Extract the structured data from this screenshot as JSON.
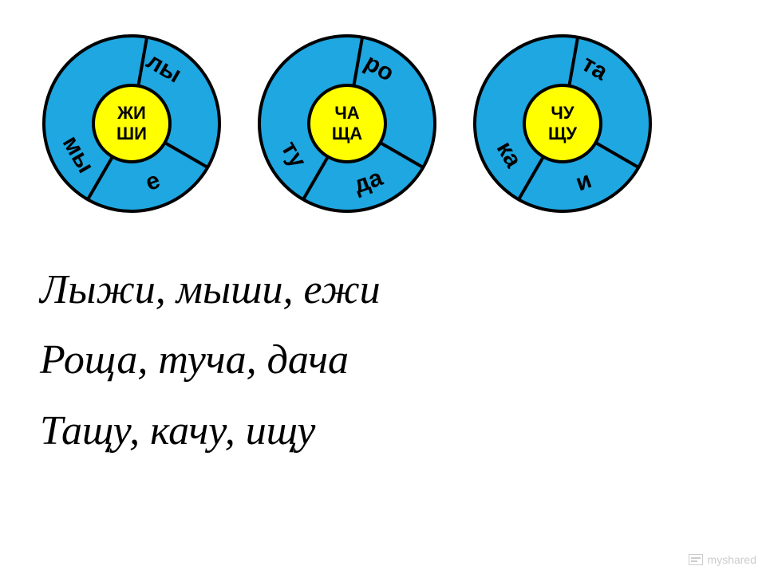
{
  "colors": {
    "outer_fill": "#1ea7e1",
    "inner_fill": "#ffff00",
    "stroke": "#000000",
    "background": "#ffffff",
    "text": "#000000",
    "watermark": "#cccccc"
  },
  "wheel_geometry": {
    "outer_radius": 110,
    "inner_radius": 48,
    "stroke_width": 4,
    "segment_font_size": 30,
    "segment_font_weight": "bold",
    "center_font_size": 22,
    "center_font_weight": "bold"
  },
  "wheels": [
    {
      "center_top": "ЖИ",
      "center_bottom": "ШИ",
      "segments": [
        {
          "label": "лы",
          "angle": -60
        },
        {
          "label": "е",
          "angle": 70
        },
        {
          "label": "мы",
          "angle": 150
        }
      ],
      "divider_angles": [
        10,
        120,
        210
      ]
    },
    {
      "center_top": "ЧА",
      "center_bottom": "ЩА",
      "segments": [
        {
          "label": "ро",
          "angle": -60
        },
        {
          "label": "да",
          "angle": 70
        },
        {
          "label": "ту",
          "angle": 150
        }
      ],
      "divider_angles": [
        10,
        120,
        210
      ]
    },
    {
      "center_top": "ЧУ",
      "center_bottom": "ЩУ",
      "segments": [
        {
          "label": "та",
          "angle": -60
        },
        {
          "label": "и",
          "angle": 70
        },
        {
          "label": "ка",
          "angle": 150
        }
      ],
      "divider_angles": [
        10,
        120,
        210
      ]
    }
  ],
  "text_lines": [
    "Лыжи, мыши, ежи",
    "Роща, туча, дача",
    "Тащу, качу, ищу"
  ],
  "watermark_text": "myshared"
}
